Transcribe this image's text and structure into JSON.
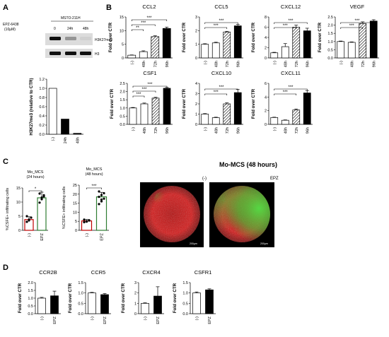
{
  "panels": {
    "A": "A",
    "B": "B",
    "C": "C",
    "D": "D"
  },
  "blot": {
    "drug": "EPZ-6438",
    "dose": "(10µM)",
    "cell_line": "MSTO-211H",
    "lanes": [
      "0",
      "24h",
      "48h"
    ],
    "bands": [
      "H3K27me3",
      "H3"
    ],
    "h3k27_intensity": [
      1.0,
      0.35,
      0.06
    ],
    "h3_intensity": [
      1.0,
      1.0,
      1.0
    ]
  },
  "chart_data": [
    {
      "id": "A-bar",
      "type": "bar",
      "title": "",
      "ylabel": "H3K27me3 (relative to CTR)",
      "categories": [
        "(-)",
        "24h",
        "48h"
      ],
      "values": [
        1.0,
        0.33,
        0.02
      ],
      "ylim": [
        0,
        1.2
      ],
      "yticks": [
        "0.0",
        "0.2",
        "0.4",
        "0.6",
        "0.8",
        "1.0",
        "1.2"
      ],
      "fills": [
        "white",
        "black",
        "black"
      ]
    },
    {
      "id": "CCL2",
      "type": "bar",
      "title": "CCL2",
      "ylabel": "Fold over CTR",
      "categories": [
        "(-)",
        "48h",
        "72h",
        "96h"
      ],
      "values": [
        1.0,
        2.3,
        7.8,
        10.8
      ],
      "errors": [
        0.1,
        0.3,
        0.3,
        0.5
      ],
      "ylim": [
        0,
        15
      ],
      "yticks": [
        "0",
        "5",
        "10",
        "15"
      ],
      "fills": [
        "white",
        "white",
        "hatch",
        "black"
      ],
      "sig": [
        {
          "from": 0,
          "to": 1,
          "label": "**"
        },
        {
          "from": 0,
          "to": 2,
          "label": "***"
        },
        {
          "from": 0,
          "to": 3,
          "label": "***"
        }
      ]
    },
    {
      "id": "CCL5",
      "type": "bar",
      "title": "CCL5",
      "ylabel": "Fold over CTR",
      "categories": [
        "(-)",
        "48h",
        "72h",
        "96h"
      ],
      "values": [
        1.0,
        1.1,
        1.9,
        2.35
      ],
      "errors": [
        0.04,
        0.05,
        0.05,
        0.1
      ],
      "ylim": [
        0,
        3
      ],
      "yticks": [
        "0",
        "1",
        "2",
        "3"
      ],
      "fills": [
        "white",
        "white",
        "hatch",
        "black"
      ],
      "sig": [
        {
          "from": 0,
          "to": 2,
          "label": "***"
        },
        {
          "from": 0,
          "to": 3,
          "label": "***"
        }
      ]
    },
    {
      "id": "CXCL12",
      "type": "bar",
      "title": "CXCL12",
      "ylabel": "Fold over CTR",
      "categories": [
        "(-)",
        "48h",
        "72h",
        "96h"
      ],
      "values": [
        1.0,
        2.2,
        6.0,
        5.3
      ],
      "errors": [
        0.1,
        0.6,
        0.4,
        0.5
      ],
      "ylim": [
        0,
        8
      ],
      "yticks": [
        "0",
        "2",
        "4",
        "6",
        "8"
      ],
      "fills": [
        "white",
        "white",
        "hatch",
        "black"
      ],
      "sig": [
        {
          "from": 0,
          "to": 2,
          "label": "***"
        },
        {
          "from": 0,
          "to": 3,
          "label": "***"
        }
      ]
    },
    {
      "id": "VEGF",
      "type": "bar",
      "title": "VEGF",
      "ylabel": "Fold over CTR",
      "categories": [
        "(-)",
        "48h",
        "72h",
        "96h"
      ],
      "values": [
        1.0,
        0.95,
        2.1,
        2.25
      ],
      "errors": [
        0.03,
        0.03,
        0.1,
        0.08
      ],
      "ylim": [
        0,
        2.5
      ],
      "yticks": [
        "0.0",
        "0.5",
        "1.0",
        "1.5",
        "2.0",
        "2.5"
      ],
      "fills": [
        "white",
        "white",
        "hatch",
        "black"
      ],
      "sig": [
        {
          "from": 0,
          "to": 2,
          "label": "***"
        },
        {
          "from": 0,
          "to": 3,
          "label": "***"
        }
      ]
    },
    {
      "id": "CSF1",
      "type": "bar",
      "title": "CSF1",
      "ylabel": "Fold over CTR",
      "categories": [
        "(-)",
        "48h",
        "72h",
        "96h"
      ],
      "values": [
        1.0,
        1.25,
        1.6,
        2.2
      ],
      "errors": [
        0.03,
        0.05,
        0.05,
        0.05
      ],
      "ylim": [
        0,
        2.5
      ],
      "yticks": [
        "0.0",
        "0.5",
        "1.0",
        "1.5",
        "2.0",
        "2.5"
      ],
      "fills": [
        "white",
        "white",
        "hatch",
        "black"
      ],
      "sig": [
        {
          "from": 0,
          "to": 1,
          "label": "***"
        },
        {
          "from": 0,
          "to": 2,
          "label": "***"
        },
        {
          "from": 0,
          "to": 3,
          "label": "***"
        }
      ]
    },
    {
      "id": "CXCL10",
      "type": "bar",
      "title": "CXCL10",
      "ylabel": "Fold over CTR",
      "categories": [
        "(-)",
        "48h",
        "72h",
        "96h"
      ],
      "values": [
        1.0,
        0.65,
        2.0,
        3.1
      ],
      "errors": [
        0.05,
        0.05,
        0.1,
        0.3
      ],
      "ylim": [
        0,
        4
      ],
      "yticks": [
        "0",
        "1",
        "2",
        "3",
        "4"
      ],
      "fills": [
        "white",
        "white",
        "hatch",
        "black"
      ],
      "sig": [
        {
          "from": 0,
          "to": 2,
          "label": "***"
        },
        {
          "from": 0,
          "to": 3,
          "label": "***"
        }
      ]
    },
    {
      "id": "CXCL11",
      "type": "bar",
      "title": "CXCL11",
      "ylabel": "Fold over CTR",
      "categories": [
        "(-)",
        "48h",
        "72h",
        "96h"
      ],
      "values": [
        1.0,
        0.6,
        2.1,
        4.6
      ],
      "errors": [
        0.05,
        0.05,
        0.15,
        0.35
      ],
      "ylim": [
        0,
        6
      ],
      "yticks": [
        "0",
        "2",
        "4",
        "6"
      ],
      "fills": [
        "white",
        "white",
        "hatch",
        "black"
      ],
      "sig": [
        {
          "from": 0,
          "to": 2,
          "label": "***"
        },
        {
          "from": 0,
          "to": 3,
          "label": "***"
        }
      ]
    },
    {
      "id": "C-24h",
      "type": "scatter-bar",
      "title": "Mo_MCS\n(24 hours)",
      "ylabel": "%CSFE+ infiltrating cells",
      "categories": [
        "(-)",
        "EPZ"
      ],
      "values": [
        3.8,
        11.5
      ],
      "errors": [
        1.0,
        2.0
      ],
      "ylim": [
        0,
        15
      ],
      "yticks": [
        "0",
        "5",
        "10",
        "15"
      ],
      "colors": [
        "#c00000",
        "#2e7d32"
      ],
      "points": [
        [
          3.0,
          3.5,
          4.5,
          5.0,
          3.8
        ],
        [
          9.8,
          11.0,
          12.0,
          13.0,
          11.6,
          12.4
        ]
      ],
      "sig": [
        {
          "from": 0,
          "to": 1,
          "label": "*"
        }
      ]
    },
    {
      "id": "C-48h",
      "type": "scatter-bar",
      "title": "Mo_MCS\n(48 hours)",
      "ylabel": "%CSFE+ infiltrating cells",
      "categories": [
        "(-)",
        "EPZ"
      ],
      "values": [
        5.2,
        18.5
      ],
      "errors": [
        0.8,
        2.5
      ],
      "ylim": [
        0,
        25
      ],
      "yticks": [
        "0",
        "5",
        "10",
        "15",
        "20",
        "25"
      ],
      "colors": [
        "#c00000",
        "#2e7d32"
      ],
      "points": [
        [
          4.5,
          5.0,
          5.6,
          5.9,
          4.8,
          5.4
        ],
        [
          14.5,
          16.0,
          17.5,
          18.5,
          19.5,
          20.5,
          21.5,
          17.0
        ]
      ],
      "sig": [
        {
          "from": 0,
          "to": 1,
          "label": "***"
        }
      ]
    },
    {
      "id": "CCR2B",
      "type": "bar",
      "title": "CCR2B",
      "ylabel": "Fold over CTR",
      "categories": [
        "(-)",
        "EPZ"
      ],
      "values": [
        1.0,
        1.15
      ],
      "errors": [
        0.05,
        0.3
      ],
      "ylim": [
        0,
        2.0
      ],
      "yticks": [
        "0.0",
        "0.5",
        "1.0",
        "1.5",
        "2.0"
      ],
      "fills": [
        "white",
        "black"
      ]
    },
    {
      "id": "CCR5",
      "type": "bar",
      "title": "CCR5",
      "ylabel": "Fold over CTR",
      "categories": [
        "(-)",
        "EPZ"
      ],
      "values": [
        1.0,
        0.92
      ],
      "errors": [
        0.03,
        0.05
      ],
      "ylim": [
        0,
        1.5
      ],
      "yticks": [
        "0.0",
        "0.5",
        "1.0",
        "1.5"
      ],
      "fills": [
        "white",
        "black"
      ]
    },
    {
      "id": "CXCR4",
      "type": "bar",
      "title": "CXCR4",
      "ylabel": "Fold over CTR",
      "categories": [
        "(-)",
        "EPZ"
      ],
      "values": [
        1.0,
        1.7
      ],
      "errors": [
        0.05,
        0.9
      ],
      "ylim": [
        0,
        3
      ],
      "yticks": [
        "0",
        "1",
        "2",
        "3"
      ],
      "fills": [
        "white",
        "black"
      ]
    },
    {
      "id": "CSFR1",
      "type": "bar",
      "title": "CSFR1",
      "ylabel": "Fold over CTR",
      "categories": [
        "(-)",
        "EPZ"
      ],
      "values": [
        1.0,
        1.15
      ],
      "errors": [
        0.05,
        0.05
      ],
      "ylim": [
        0,
        1.5
      ],
      "yticks": [
        "0.0",
        "0.5",
        "1.0",
        "1.5"
      ],
      "fills": [
        "white",
        "black"
      ]
    }
  ],
  "microscopy": {
    "title": "Mo-MCS (48 hours)",
    "images": [
      {
        "label": "(-)",
        "scale": "200µm",
        "green": 0.1
      },
      {
        "label": "EPZ",
        "scale": "200µm",
        "green": 0.7
      }
    ],
    "colors": {
      "red": "#d80f0f",
      "green": "#3fd13a",
      "background": "#000000"
    }
  }
}
